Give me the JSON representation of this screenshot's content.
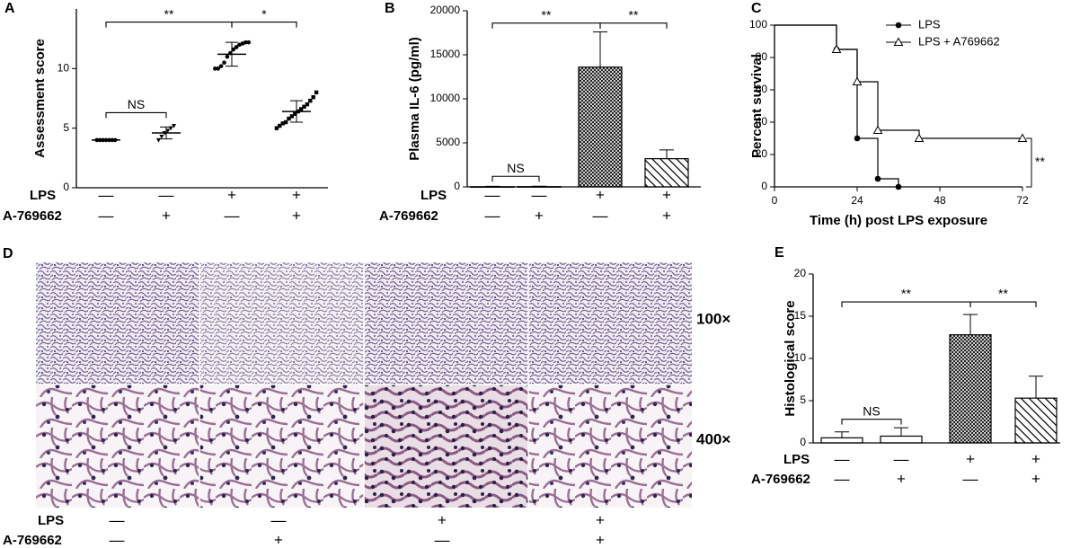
{
  "chart_data": [
    {
      "type": "dot",
      "panel": "A",
      "ylabel": "Assessment score",
      "categories": [
        null,
        null,
        null,
        null
      ],
      "points": [
        [
          4,
          4,
          4,
          4,
          4,
          4,
          4
        ],
        [
          4.0,
          4.3,
          4.6,
          4.8,
          5.0,
          5.2
        ],
        [
          10.0,
          10.0,
          10.2,
          10.5,
          11.0,
          11.3,
          11.6,
          11.8,
          12.0,
          12.1,
          12.2,
          12.2
        ],
        [
          5.0,
          5.2,
          5.4,
          5.5,
          5.8,
          6.0,
          6.2,
          6.4,
          6.6,
          6.8,
          7.0,
          7.3,
          7.6,
          8.0
        ]
      ],
      "values": [
        4,
        4.6,
        11.2,
        6.4
      ],
      "errors": [
        0.05,
        0.5,
        1.0,
        0.9
      ],
      "color": "#000000",
      "ylim": [
        0,
        15
      ],
      "yticks": [
        0,
        5,
        10
      ],
      "conditions": [
        {
          "name": "LPS",
          "signs": [
            "—",
            "—",
            "+",
            "+"
          ]
        },
        {
          "name": "A-769662",
          "signs": [
            "—",
            "+",
            "—",
            "+"
          ]
        }
      ],
      "annotations": [
        {
          "text": "NS",
          "from": 0,
          "to": 1
        },
        {
          "text": "**",
          "from": 0,
          "to": 2
        },
        {
          "text": "*",
          "from": 2,
          "to": 3
        }
      ]
    },
    {
      "type": "bar",
      "panel": "B",
      "ylabel": "Plasma IL-6 (pg/ml)",
      "categories": [
        null,
        null,
        null,
        null
      ],
      "values": [
        20,
        30,
        13600,
        3200
      ],
      "errors": [
        50,
        50,
        4000,
        1000
      ],
      "patterns": [
        "plain",
        "plain",
        "crosshatch",
        "diagonal"
      ],
      "color": "#000000",
      "ylim": [
        0,
        20000
      ],
      "yticks": [
        0,
        5000,
        10000,
        15000,
        20000
      ],
      "conditions": [
        {
          "name": "LPS",
          "signs": [
            "—",
            "—",
            "+",
            "+"
          ]
        },
        {
          "name": "A-769662",
          "signs": [
            "—",
            "+",
            "—",
            "+"
          ]
        }
      ],
      "annotations": [
        {
          "text": "NS",
          "from": 0,
          "to": 1
        },
        {
          "text": "**",
          "from": 0,
          "to": 2
        },
        {
          "text": "**",
          "from": 2,
          "to": 3
        }
      ]
    },
    {
      "type": "line",
      "panel": "C",
      "xlabel": "Time (h) post LPS exposure",
      "ylabel": "Percent survival",
      "xlim": [
        0,
        72
      ],
      "xticks": [
        0,
        24,
        48,
        72
      ],
      "ylim": [
        0,
        100
      ],
      "yticks": [
        0,
        20,
        40,
        60,
        80,
        100
      ],
      "series": [
        {
          "name": "LPS",
          "color": "#000000",
          "marker": "circle",
          "x": [
            18,
            24,
            30,
            36
          ],
          "values": [
            85,
            30,
            5,
            0
          ]
        },
        {
          "name": "LPS + A769662",
          "color": "#000000",
          "marker": "triangle",
          "x": [
            18,
            24,
            30,
            42,
            72
          ],
          "values": [
            85,
            65,
            35,
            30,
            30
          ]
        }
      ],
      "start": [
        0,
        100
      ],
      "annotation": "**"
    },
    {
      "type": "bar",
      "panel": "E",
      "ylabel": "Histological score",
      "categories": [
        null,
        null,
        null,
        null
      ],
      "values": [
        0.6,
        0.8,
        12.8,
        5.3
      ],
      "errors": [
        0.7,
        1.0,
        2.4,
        2.6
      ],
      "patterns": [
        "plain",
        "plain",
        "crosshatch",
        "diagonal"
      ],
      "color": "#000000",
      "ylim": [
        0,
        20
      ],
      "yticks": [
        0,
        5,
        10,
        15,
        20
      ],
      "conditions": [
        {
          "name": "LPS",
          "signs": [
            "—",
            "—",
            "+",
            "+"
          ]
        },
        {
          "name": "A-769662",
          "signs": [
            "—",
            "+",
            "—",
            "+"
          ]
        }
      ],
      "annotations": [
        {
          "text": "NS",
          "from": 0,
          "to": 1
        },
        {
          "text": "**",
          "from": 0,
          "to": 2
        },
        {
          "text": "**",
          "from": 2,
          "to": 3
        }
      ]
    }
  ],
  "images": {
    "panel": "D",
    "magnifications": [
      "100×",
      "400×"
    ],
    "conditions": [
      {
        "name": "LPS",
        "signs": [
          "—",
          "—",
          "+",
          "+"
        ]
      },
      {
        "name": "A-769662",
        "signs": [
          "—",
          "+",
          "—",
          "+"
        ]
      }
    ]
  }
}
